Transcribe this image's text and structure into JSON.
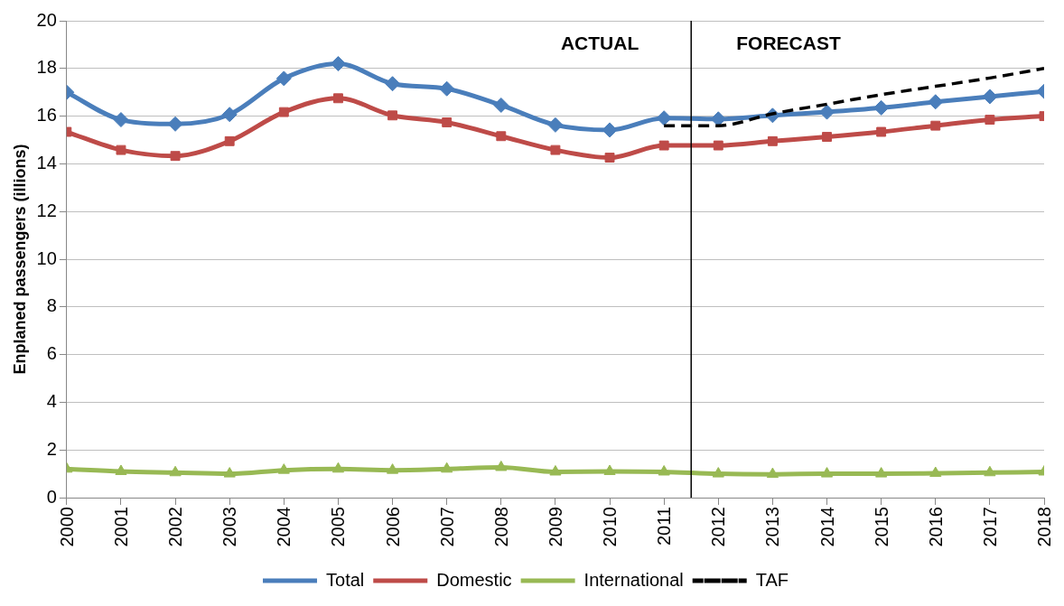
{
  "chart_data": {
    "type": "line",
    "ylabel": "Enplaned passengers (illions)",
    "x": [
      2000,
      2001,
      2002,
      2003,
      2004,
      2005,
      2006,
      2007,
      2008,
      2009,
      2010,
      2011,
      2012,
      2013,
      2014,
      2015,
      2016,
      2017,
      2018
    ],
    "xlim": [
      2000,
      2018
    ],
    "xticks": [
      2000,
      2001,
      2002,
      2003,
      2004,
      2005,
      2006,
      2007,
      2008,
      2009,
      2010,
      2011,
      2012,
      2013,
      2014,
      2015,
      2016,
      2017,
      2018
    ],
    "ylim": [
      0,
      20
    ],
    "yticks": [
      0,
      2,
      4,
      6,
      8,
      10,
      12,
      14,
      16,
      18,
      20
    ],
    "grid": "y",
    "legend": "bottom",
    "series": [
      {
        "name": "Total",
        "color": "#4a7ebb",
        "marker": "diamond",
        "values": [
          17.0,
          15.85,
          15.67,
          16.07,
          17.58,
          18.2,
          17.36,
          17.15,
          16.46,
          15.63,
          15.42,
          15.92,
          15.88,
          16.03,
          16.17,
          16.35,
          16.6,
          16.82,
          17.04
        ]
      },
      {
        "name": "Domestic",
        "color": "#be4b48",
        "marker": "square",
        "values": [
          15.34,
          14.58,
          14.33,
          14.95,
          16.17,
          16.75,
          16.03,
          15.74,
          15.16,
          14.58,
          14.26,
          14.77,
          14.77,
          14.95,
          15.13,
          15.34,
          15.6,
          15.85,
          16.0
        ]
      },
      {
        "name": "International",
        "color": "#98b954",
        "marker": "triangle",
        "values": [
          1.2,
          1.1,
          1.05,
          1.0,
          1.15,
          1.2,
          1.15,
          1.2,
          1.27,
          1.08,
          1.1,
          1.08,
          1.0,
          0.98,
          1.0,
          1.0,
          1.02,
          1.05,
          1.08
        ]
      },
      {
        "name": "TAF",
        "color": "#000000",
        "marker": "none",
        "line_style": "dashed",
        "x": [
          2011,
          2012,
          2013,
          2014,
          2015,
          2016,
          2017,
          2018
        ],
        "values": [
          15.6,
          15.6,
          16.1,
          16.5,
          16.9,
          17.25,
          17.6,
          18.0
        ]
      }
    ],
    "ref_lines": [
      {
        "axis": "x",
        "value": 2011.5,
        "color": "#000000"
      }
    ],
    "annotations": [
      "ACTUAL",
      "FORECAST"
    ]
  }
}
